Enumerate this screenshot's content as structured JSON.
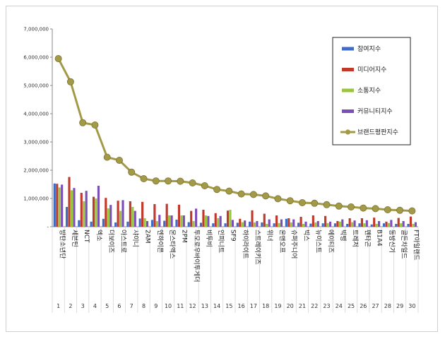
{
  "chart_data": {
    "type": "bar",
    "title": "",
    "xlabel": "",
    "ylabel": "",
    "ylim": [
      0,
      7000000
    ],
    "y_ticks": [
      "-",
      "1,000,000",
      "2,000,000",
      "3,000,000",
      "4,000,000",
      "5,000,000",
      "6,000,000",
      "7,000,000"
    ],
    "grid": false,
    "legend_position": "top-right",
    "categories": [
      "방탄소년단",
      "세븐틴",
      "NCT",
      "엑소",
      "더보이즈",
      "아스트로",
      "샤이니",
      "2AM",
      "엔하이픈",
      "몬스타엑스",
      "2PM",
      "투모로우바이투게더",
      "비투비",
      "인피니트",
      "SF9",
      "하이라이트",
      "스트레이키즈",
      "위너",
      "온앤오프",
      "슈퍼주니어",
      "빅스",
      "뉴이스트",
      "에이티즈",
      "빅뱅",
      "트레저",
      "펜타곤",
      "B1A4",
      "동방신기",
      "골든차일드",
      "FT아일랜드"
    ],
    "ranks": [
      "1",
      "2",
      "3",
      "4",
      "5",
      "6",
      "7",
      "8",
      "9",
      "10",
      "11",
      "12",
      "13",
      "14",
      "15",
      "16",
      "17",
      "18",
      "19",
      "20",
      "21",
      "22",
      "23",
      "24",
      "25",
      "26",
      "27",
      "28",
      "29",
      "30"
    ],
    "series": [
      {
        "name": "참여지수",
        "type": "bar",
        "color": "#3f6cc4",
        "values": [
          1530000,
          700000,
          230000,
          180000,
          280000,
          150000,
          180000,
          290000,
          240000,
          210000,
          250000,
          160000,
          140000,
          120000,
          120000,
          140000,
          180000,
          150000,
          120000,
          280000,
          140000,
          110000,
          120000,
          120000,
          100000,
          120000,
          80000,
          120000,
          100000,
          100000
        ]
      },
      {
        "name": "미디어지수",
        "type": "bar",
        "color": "#c0392b",
        "values": [
          1520000,
          1760000,
          1200000,
          1060000,
          1020000,
          920000,
          900000,
          880000,
          800000,
          810000,
          780000,
          560000,
          600000,
          480000,
          570000,
          280000,
          580000,
          460000,
          400000,
          300000,
          350000,
          400000,
          380000,
          200000,
          300000,
          300000,
          320000,
          180000,
          310000,
          360000
        ]
      },
      {
        "name": "소통지수",
        "type": "bar",
        "color": "#9bc53d",
        "values": [
          1390000,
          1290000,
          900000,
          1000000,
          650000,
          560000,
          700000,
          300000,
          200000,
          400000,
          400000,
          200000,
          400000,
          300000,
          600000,
          160000,
          150000,
          100000,
          130000,
          150000,
          100000,
          150000,
          130000,
          180000,
          160000,
          120000,
          100000,
          130000,
          120000,
          100000
        ]
      },
      {
        "name": "커뮤니티지수",
        "type": "bar",
        "color": "#7b4fb8",
        "values": [
          1490000,
          1370000,
          1270000,
          1450000,
          770000,
          940000,
          560000,
          200000,
          420000,
          400000,
          400000,
          640000,
          380000,
          380000,
          240000,
          220000,
          200000,
          260000,
          260000,
          260000,
          180000,
          200000,
          180000,
          260000,
          220000,
          230000,
          200000,
          240000,
          200000,
          160000
        ]
      },
      {
        "name": "브랜드평판지수",
        "type": "line",
        "color": "#a39a48",
        "values": [
          5950000,
          5130000,
          3680000,
          3600000,
          2460000,
          2350000,
          1930000,
          1700000,
          1620000,
          1620000,
          1610000,
          1550000,
          1450000,
          1320000,
          1260000,
          1160000,
          1140000,
          1090000,
          990000,
          920000,
          850000,
          830000,
          780000,
          730000,
          700000,
          660000,
          640000,
          600000,
          580000,
          560000
        ]
      }
    ]
  }
}
